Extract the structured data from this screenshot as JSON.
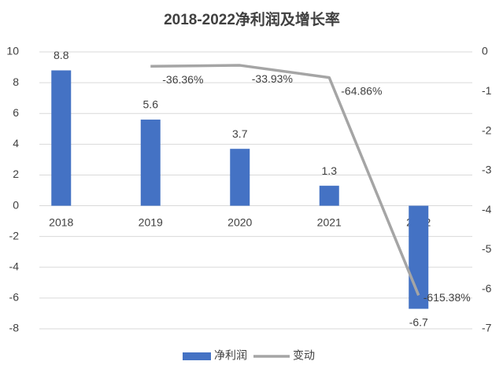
{
  "chart_data": {
    "type": "bar",
    "title": "2018-2022净利润及增长率",
    "categories": [
      "2018",
      "2019",
      "2020",
      "2021",
      "2022"
    ],
    "series": [
      {
        "name": "净利润",
        "color": "#4472c4",
        "values": [
          8.8,
          5.6,
          3.7,
          1.3,
          -6.7
        ]
      },
      {
        "name": "变动",
        "type": "line",
        "axis": "y2",
        "color": "#a5a5a5",
        "values": [
          null,
          -0.3636,
          -0.3393,
          -0.6486,
          -6.1538
        ],
        "value_labels": [
          null,
          "-36.36%",
          "-33.93%",
          "-64.86%",
          "-615.38%"
        ]
      }
    ],
    "ylim": [
      -8,
      10
    ],
    "yticks": [
      -8,
      -6,
      -4,
      -2,
      0,
      2,
      4,
      6,
      8,
      10
    ],
    "y2lim": [
      -7,
      0
    ],
    "y2ticks": [
      -7,
      -6,
      -5,
      -4,
      -3,
      -2,
      -1,
      0
    ],
    "grid": true,
    "legend": "bottom"
  }
}
